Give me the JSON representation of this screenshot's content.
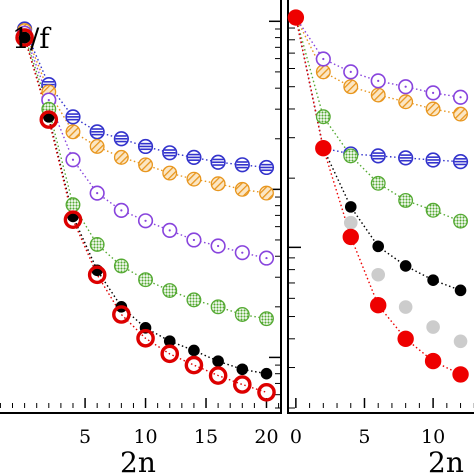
{
  "chart_data": [
    {
      "type": "scatter",
      "panel": "left",
      "annotation": "1/f",
      "xlabel": "2n",
      "ylabel": "",
      "title": "",
      "xlim": [
        -2.2,
        21.2
      ],
      "xticks": [
        5,
        10,
        15,
        20
      ],
      "ylog": true,
      "grid": false,
      "legend": "none",
      "series": [
        {
          "color": "#3333cc",
          "marker": "open-circle-hlines",
          "x": [
            0,
            2,
            4,
            6,
            8,
            10,
            12,
            14,
            16,
            18,
            20
          ],
          "y": [
            0.9,
            0.42,
            0.27,
            0.22,
            0.2,
            0.18,
            0.165,
            0.155,
            0.145,
            0.14,
            0.135
          ]
        },
        {
          "color": "#e8961e",
          "marker": "hatched-circle",
          "x": [
            0,
            2,
            4,
            6,
            8,
            10,
            12,
            14,
            16,
            18,
            20
          ],
          "y": [
            0.88,
            0.38,
            0.22,
            0.18,
            0.155,
            0.14,
            0.125,
            0.115,
            0.108,
            0.1,
            0.095
          ]
        },
        {
          "color": "#8844dd",
          "marker": "open-circle-dotted",
          "x": [
            0,
            2,
            4,
            6,
            8,
            10,
            12,
            14,
            16,
            18,
            20
          ],
          "y": [
            0.85,
            0.34,
            0.15,
            0.095,
            0.075,
            0.065,
            0.057,
            0.05,
            0.046,
            0.042,
            0.039
          ]
        },
        {
          "color": "#55aa33",
          "marker": "green-filled-circle",
          "x": [
            0,
            2,
            4,
            6,
            8,
            10,
            12,
            14,
            16,
            18,
            20
          ],
          "y": [
            0.82,
            0.3,
            0.081,
            0.047,
            0.035,
            0.029,
            0.025,
            0.022,
            0.02,
            0.018,
            0.017
          ]
        },
        {
          "color": "#000000",
          "marker": "black-dot",
          "x": [
            0,
            2,
            4,
            6,
            8,
            10,
            12,
            14,
            16,
            18,
            20
          ],
          "y": [
            0.8,
            0.27,
            0.069,
            0.033,
            0.02,
            0.015,
            0.0125,
            0.011,
            0.0095,
            0.0085,
            0.008
          ]
        },
        {
          "color": "#dd0000",
          "marker": "red-ring",
          "x": [
            0,
            2,
            4,
            6,
            8,
            10,
            12,
            14,
            16,
            18,
            20
          ],
          "y": [
            0.8,
            0.26,
            0.066,
            0.031,
            0.018,
            0.013,
            0.0105,
            0.009,
            0.0078,
            0.0069,
            0.0062
          ]
        }
      ]
    },
    {
      "type": "scatter",
      "panel": "right",
      "annotation": "",
      "xlabel": "2n",
      "ylabel": "",
      "title": "",
      "xlim": [
        -0.5,
        14
      ],
      "xticks": [
        0,
        5,
        10
      ],
      "ylog": true,
      "grid": false,
      "legend": "none",
      "series": [
        {
          "color": "#3333cc",
          "marker": "open-circle-hlines",
          "x": [
            0,
            2,
            4,
            6,
            8,
            10,
            12
          ],
          "y": [
            1.0,
            0.27,
            0.255,
            0.25,
            0.245,
            0.24,
            0.236
          ]
        },
        {
          "color": "#e8961e",
          "marker": "hatched-circle",
          "x": [
            0,
            2,
            4,
            6,
            8,
            10,
            12
          ],
          "y": [
            1.0,
            0.58,
            0.5,
            0.46,
            0.43,
            0.4,
            0.38
          ]
        },
        {
          "color": "#8844dd",
          "marker": "open-circle-dotted",
          "x": [
            0,
            2,
            4,
            6,
            8,
            10,
            12
          ],
          "y": [
            1.0,
            0.66,
            0.58,
            0.53,
            0.5,
            0.47,
            0.45
          ]
        },
        {
          "color": "#55aa33",
          "marker": "green-filled-circle",
          "x": [
            0,
            2,
            4,
            6,
            8,
            10,
            12
          ],
          "y": [
            1.0,
            0.37,
            0.25,
            0.19,
            0.16,
            0.145,
            0.13
          ]
        },
        {
          "color": "#000000",
          "marker": "black-dot",
          "x": [
            0,
            2,
            4,
            6,
            8,
            10,
            12
          ],
          "y": [
            1.0,
            0.27,
            0.15,
            0.101,
            0.083,
            0.072,
            0.065
          ]
        },
        {
          "color": "#cccccc",
          "marker": "gray-dot",
          "x": [
            0,
            2,
            4,
            6,
            8,
            10,
            12
          ],
          "y": [
            1.0,
            0.27,
            0.128,
            0.076,
            0.055,
            0.045,
            0.039
          ]
        },
        {
          "color": "#ee0000",
          "marker": "red-dot",
          "x": [
            0,
            2,
            4,
            6,
            8,
            10,
            12
          ],
          "y": [
            1.0,
            0.27,
            0.111,
            0.056,
            0.04,
            0.032,
            0.028
          ]
        }
      ]
    }
  ]
}
